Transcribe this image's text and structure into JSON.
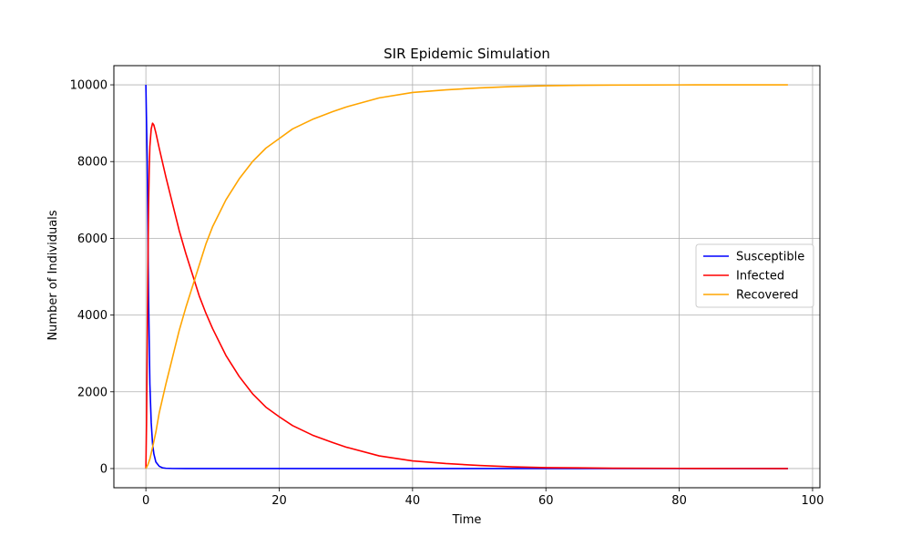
{
  "chart_data": {
    "type": "line",
    "title": "SIR Epidemic Simulation",
    "xlabel": "Time",
    "ylabel": "Number of Individuals",
    "xlim": [
      -4.8,
      101.1
    ],
    "ylim": [
      -500,
      10500
    ],
    "xticks": [
      0,
      20,
      40,
      60,
      80,
      100
    ],
    "yticks": [
      0,
      2000,
      4000,
      6000,
      8000,
      10000
    ],
    "grid": true,
    "legend_position": "center-right",
    "series": [
      {
        "name": "Susceptible",
        "color": "#0000ff",
        "x": [
          0,
          0.2,
          0.4,
          0.6,
          0.8,
          1.0,
          1.2,
          1.5,
          2.0,
          2.5,
          3.0,
          4.0,
          6.0,
          10.0,
          20.0,
          40.0,
          60.0,
          80.0,
          96.3
        ],
        "y": [
          10000,
          8000,
          4500,
          2200,
          1200,
          650,
          380,
          170,
          60,
          20,
          8,
          2,
          0,
          0,
          0,
          0,
          0,
          0,
          0
        ]
      },
      {
        "name": "Infected",
        "color": "#ff0000",
        "x": [
          0,
          0.1,
          0.2,
          0.3,
          0.4,
          0.5,
          0.6,
          0.8,
          1.0,
          1.2,
          1.5,
          2.0,
          3.0,
          4.0,
          5.0,
          6.0,
          7.0,
          8.0,
          9.0,
          10.0,
          12.0,
          14.0,
          16.0,
          18.0,
          20.0,
          22.0,
          25.0,
          28.0,
          30.0,
          35.0,
          40.0,
          45.0,
          50.0,
          55.0,
          60.0,
          70.0,
          80.0,
          90.0,
          96.3
        ],
        "y": [
          0,
          1200,
          3200,
          5200,
          6800,
          7800,
          8400,
          8850,
          9000,
          8950,
          8750,
          8350,
          7600,
          6900,
          6200,
          5600,
          5050,
          4500,
          4050,
          3650,
          2950,
          2400,
          1950,
          1600,
          1350,
          1120,
          870,
          680,
          560,
          330,
          200,
          130,
          80,
          45,
          25,
          10,
          5,
          2,
          1
        ]
      },
      {
        "name": "Recovered",
        "color": "#ffa500",
        "x": [
          0,
          0.3,
          0.6,
          1.0,
          1.5,
          2.0,
          3.0,
          4.0,
          5.0,
          6.0,
          7.0,
          8.0,
          9.0,
          10.0,
          12.0,
          14.0,
          16.0,
          18.0,
          20.0,
          22.0,
          25.0,
          28.0,
          30.0,
          35.0,
          40.0,
          45.0,
          50.0,
          55.0,
          60.0,
          65.0,
          70.0,
          80.0,
          90.0,
          96.3
        ],
        "y": [
          0,
          100,
          250,
          550,
          950,
          1450,
          2200,
          2900,
          3600,
          4200,
          4750,
          5300,
          5850,
          6300,
          7000,
          7550,
          8000,
          8350,
          8600,
          8850,
          9100,
          9300,
          9420,
          9660,
          9800,
          9870,
          9920,
          9955,
          9975,
          9988,
          9994,
          9998,
          10000,
          10000
        ]
      }
    ]
  }
}
